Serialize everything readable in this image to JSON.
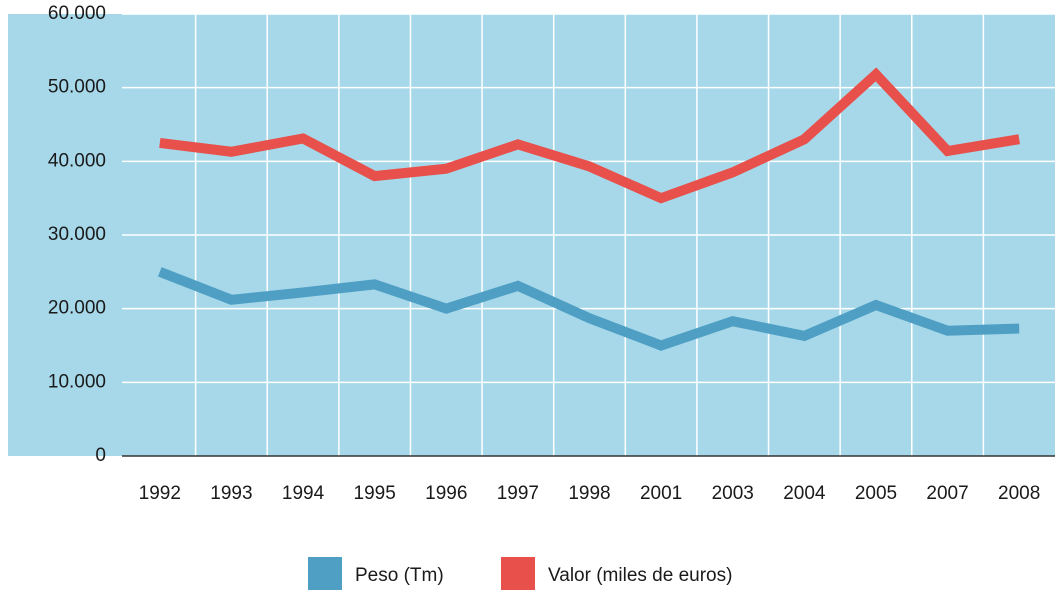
{
  "chart_data": {
    "type": "line",
    "categories": [
      "1992",
      "1993",
      "1994",
      "1995",
      "1996",
      "1997",
      "1998",
      "2001",
      "2003",
      "2004",
      "2005",
      "2007",
      "2008"
    ],
    "series": [
      {
        "name": "Peso (Tm)",
        "color": "#4f9fc4",
        "values": [
          25000,
          21200,
          22200,
          23300,
          20000,
          23100,
          18700,
          15000,
          18300,
          16300,
          20500,
          17000,
          17300
        ]
      },
      {
        "name": "Valor (miles de euros)",
        "color": "#e8514b",
        "values": [
          42500,
          41300,
          43100,
          38000,
          39000,
          42300,
          39300,
          35000,
          38500,
          43000,
          51800,
          41400,
          43000
        ]
      }
    ],
    "ylim": [
      0,
      60000
    ],
    "yticks": [
      0,
      {
        "value": 10000,
        "label": "10.000"
      },
      {
        "value": 20000,
        "label": "20.000"
      },
      {
        "value": 30000,
        "label": "30.000"
      },
      {
        "value": 40000,
        "label": "40.000"
      },
      {
        "value": 50000,
        "label": "50.000"
      },
      {
        "value": 60000,
        "label": "60.000"
      }
    ],
    "grid": true,
    "legend": "bottom",
    "background": "#a6d8ea"
  }
}
